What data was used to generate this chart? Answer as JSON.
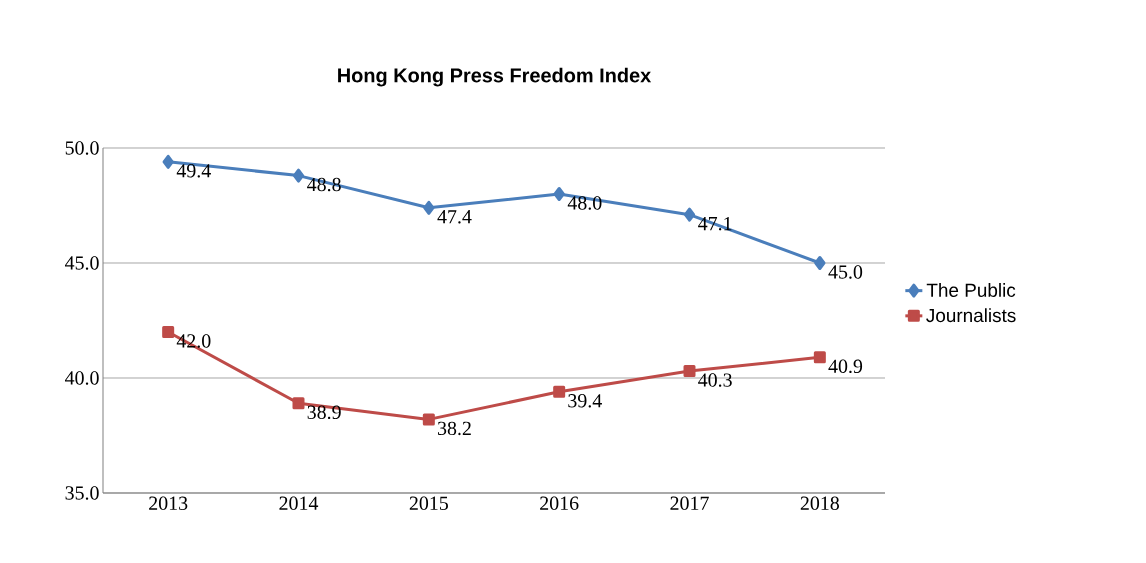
{
  "chart_data": {
    "type": "line",
    "title": "Hong Kong Press Freedom Index",
    "categories": [
      "2013",
      "2014",
      "2015",
      "2016",
      "2017",
      "2018"
    ],
    "series": [
      {
        "name": "The Public",
        "color": "#4a7ebb",
        "marker": "diamond",
        "values": [
          49.4,
          48.8,
          47.4,
          48.0,
          47.1,
          45.0
        ],
        "value_labels": [
          "49.4",
          "48.8",
          "47.4",
          "48.0",
          "47.1",
          "45.0"
        ]
      },
      {
        "name": "Journalists",
        "color": "#be4b48",
        "marker": "square",
        "values": [
          42.0,
          38.9,
          38.2,
          39.4,
          40.3,
          40.9
        ],
        "value_labels": [
          "42.0",
          "38.9",
          "38.2",
          "39.4",
          "40.3",
          "40.9"
        ]
      }
    ],
    "ylim": [
      35,
      50
    ],
    "yticks": [
      {
        "value": 35,
        "label": "35.0"
      },
      {
        "value": 40,
        "label": "40.0"
      },
      {
        "value": 45,
        "label": "45.0"
      },
      {
        "value": 50,
        "label": "50.0"
      }
    ],
    "grid": "y",
    "legend": "right"
  }
}
